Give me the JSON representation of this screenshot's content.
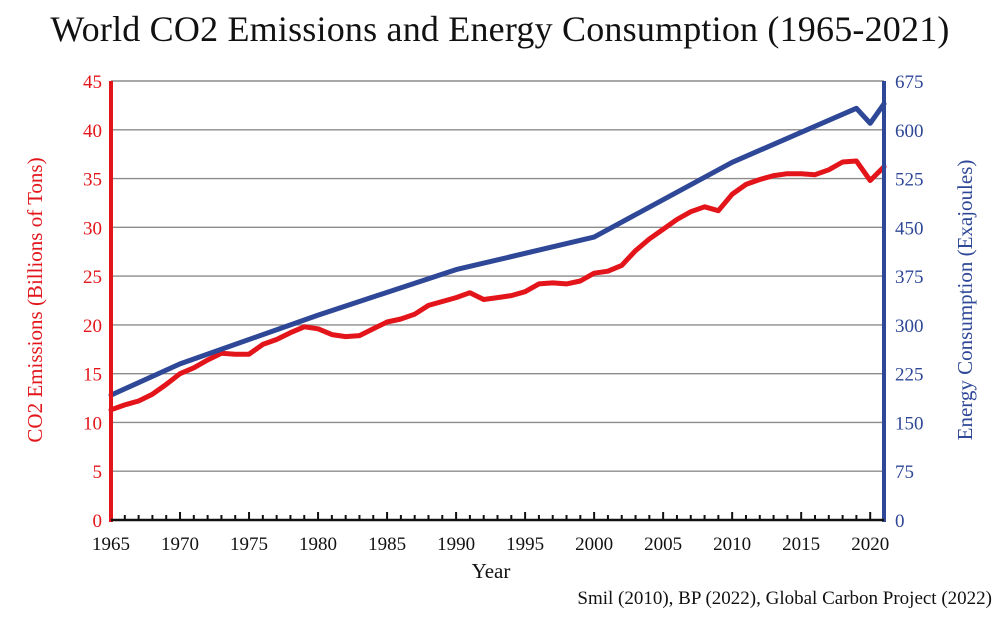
{
  "chart_data": {
    "type": "line",
    "title": "World CO2 Emissions and Energy Consumption (1965-2021)",
    "xlabel": "Year",
    "ylabel_left": "CO2 Emissions (Billions of Tons)",
    "ylabel_right": "Energy Consumption (Exajoules)",
    "source": "Smil (2010), BP (2022), Global Carbon Project (2022)",
    "xlim": [
      1965,
      2021
    ],
    "ylim_left": [
      0,
      45
    ],
    "ylim_right": [
      0,
      675
    ],
    "x_ticks": [
      "1965",
      "1970",
      "1975",
      "1980",
      "1985",
      "1990",
      "1995",
      "2000",
      "2005",
      "2010",
      "2015",
      "2020"
    ],
    "y_ticks_left": [
      "0",
      "5",
      "10",
      "15",
      "20",
      "25",
      "30",
      "35",
      "40",
      "45"
    ],
    "y_ticks_right": [
      "0",
      "75",
      "150",
      "225",
      "300",
      "375",
      "450",
      "525",
      "600",
      "675"
    ],
    "grid": "horizontal",
    "colors": {
      "co2": "#e3151a",
      "energy": "#2e4797",
      "grid": "#8c8c8c",
      "text": "#111111"
    },
    "series": [
      {
        "axis": "left",
        "x": [
          1965,
          1966,
          1967,
          1968,
          1969,
          1970,
          1971,
          1972,
          1973,
          1974,
          1975,
          1976,
          1977,
          1978,
          1979,
          1980,
          1981,
          1982,
          1983,
          1984,
          1985,
          1986,
          1987,
          1988,
          1989,
          1990,
          1991,
          1992,
          1993,
          1994,
          1995,
          1996,
          1997,
          1998,
          1999,
          2000,
          2001,
          2002,
          2003,
          2004,
          2005,
          2006,
          2007,
          2008,
          2009,
          2010,
          2011,
          2012,
          2013,
          2014,
          2015,
          2016,
          2017,
          2018,
          2019,
          2020,
          2021
        ],
        "values": [
          11.3,
          11.8,
          12.2,
          12.9,
          13.9,
          15.0,
          15.6,
          16.4,
          17.1,
          17.0,
          17.0,
          18.0,
          18.5,
          19.2,
          19.8,
          19.6,
          19.0,
          18.8,
          18.9,
          19.6,
          20.3,
          20.6,
          21.1,
          22.0,
          22.4,
          22.8,
          23.3,
          22.6,
          22.8,
          23.0,
          23.4,
          24.2,
          24.3,
          24.2,
          24.5,
          25.3,
          25.5,
          26.1,
          27.6,
          28.8,
          29.8,
          30.8,
          31.6,
          32.1,
          31.7,
          33.4,
          34.4,
          34.9,
          35.3,
          35.5,
          35.5,
          35.4,
          35.9,
          36.7,
          36.8,
          34.8,
          36.2
        ]
      },
      {
        "axis": "right",
        "x": [
          1965,
          1970,
          1980,
          1990,
          2000,
          2010,
          2019,
          2020,
          2021
        ],
        "values": [
          192,
          240,
          315,
          385,
          435,
          550,
          633,
          610,
          640
        ]
      }
    ]
  }
}
